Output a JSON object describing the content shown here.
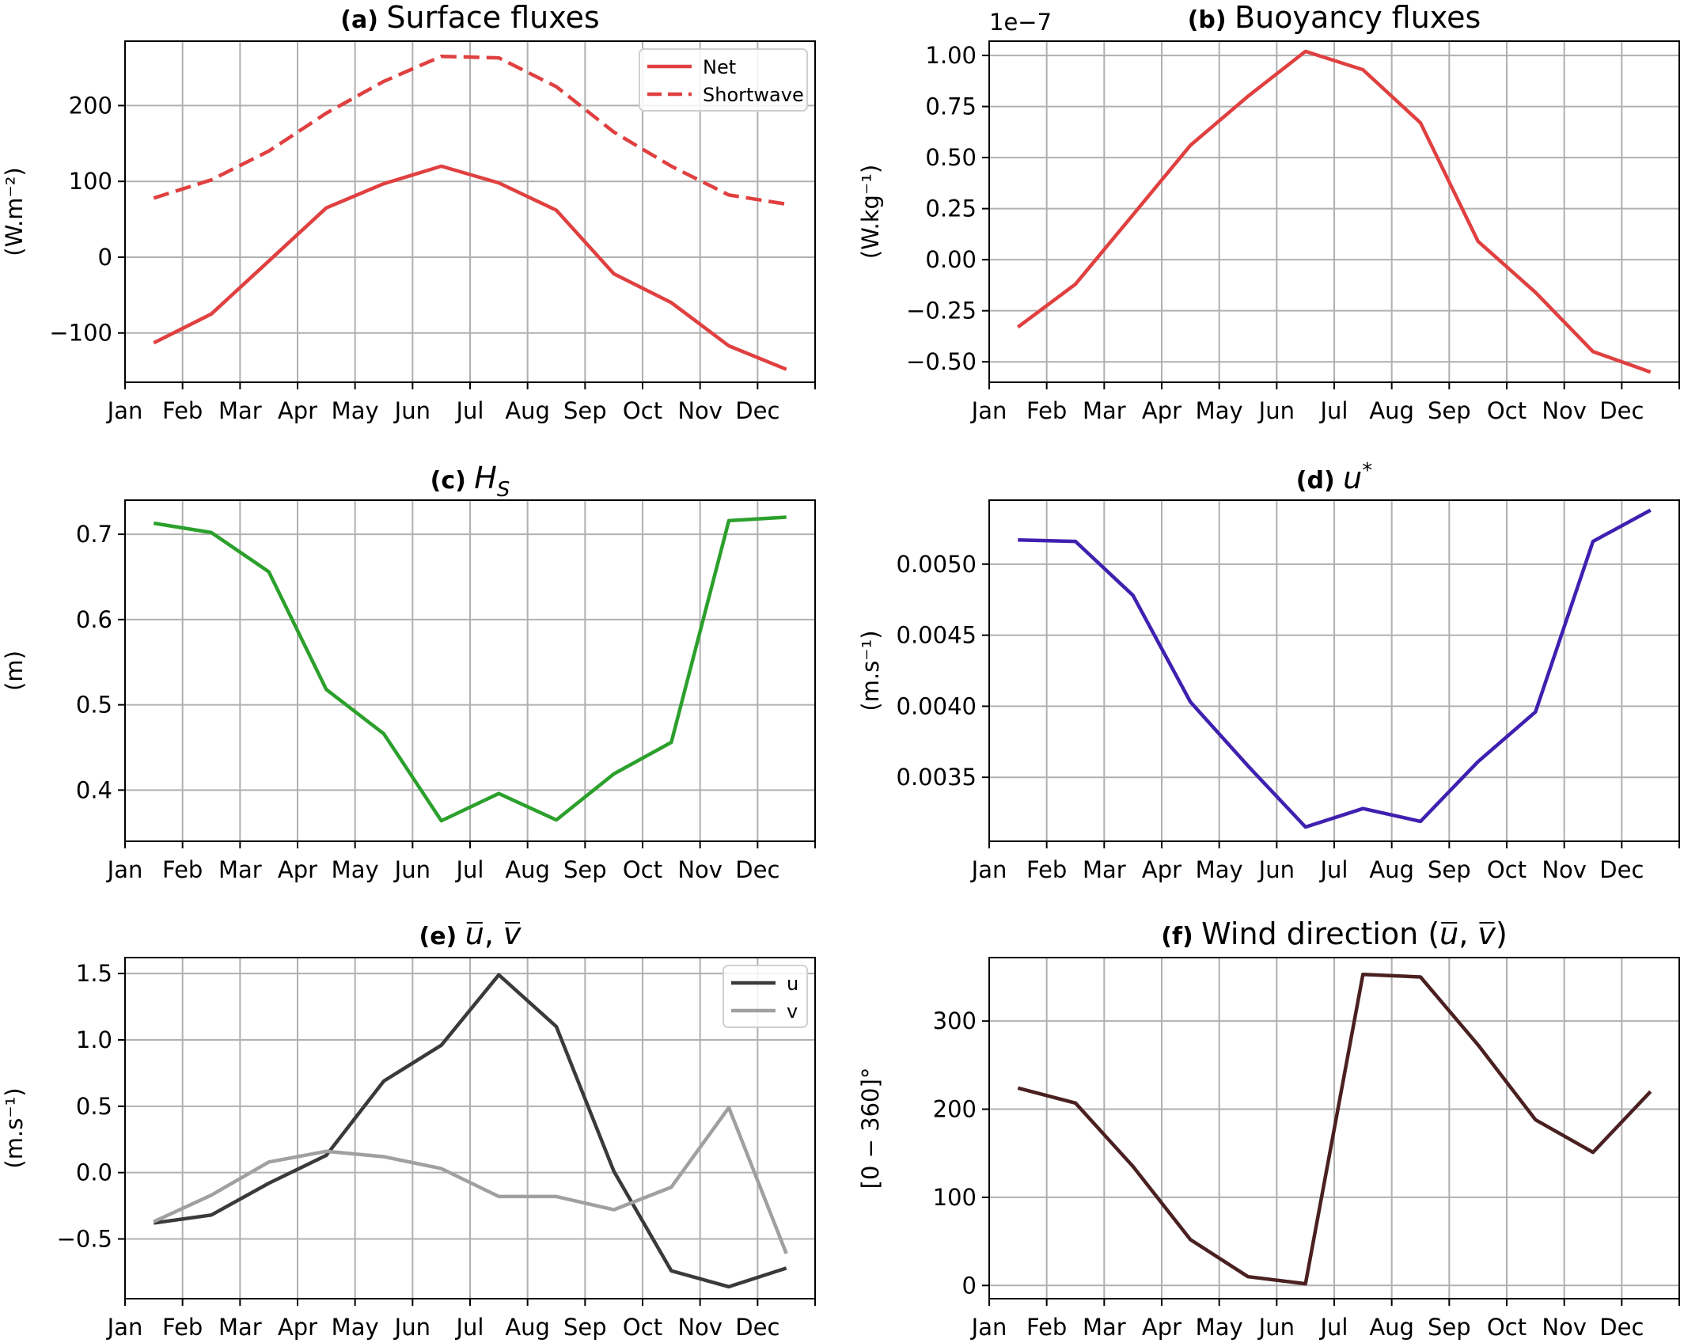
{
  "chart_data": [
    {
      "id": "a",
      "type": "line",
      "tag": "(a)",
      "title": "Surface fluxes",
      "ylabel": "(W.m⁻²)",
      "categories": [
        "Jan",
        "Feb",
        "Mar",
        "Apr",
        "May",
        "Jun",
        "Jul",
        "Aug",
        "Sep",
        "Oct",
        "Nov",
        "Dec"
      ],
      "xlim": [
        0,
        12
      ],
      "ylim": [
        -165,
        285
      ],
      "yticks": [
        -100,
        0,
        100,
        200
      ],
      "ytick_labels": [
        "−100",
        "0",
        "100",
        "200"
      ],
      "grid": true,
      "legend": "top-right",
      "series": [
        {
          "name": "Net",
          "style": "solid",
          "color": "#e04040",
          "x": [
            0.5,
            1.5,
            2.5,
            3.5,
            4.5,
            5.5,
            6.5,
            7.5,
            8.5,
            9.5,
            10.5,
            11.5
          ],
          "values": [
            -113,
            -75,
            -5,
            65,
            97,
            120,
            98,
            62,
            -22,
            -60,
            -117,
            -148
          ]
        },
        {
          "name": "Shortwave",
          "style": "dashed",
          "color": "#e04040",
          "x": [
            0.5,
            1.5,
            2.5,
            3.5,
            4.5,
            5.5,
            6.5,
            7.5,
            8.5,
            9.5,
            10.5,
            11.5
          ],
          "values": [
            78,
            102,
            140,
            190,
            232,
            265,
            263,
            225,
            165,
            120,
            82,
            70
          ]
        }
      ]
    },
    {
      "id": "b",
      "type": "line",
      "tag": "(b)",
      "title": "Buoyancy fluxes",
      "ylabel": "(W.kg⁻¹)",
      "offset_label": "1e−7",
      "categories": [
        "Jan",
        "Feb",
        "Mar",
        "Apr",
        "May",
        "Jun",
        "Jul",
        "Aug",
        "Sep",
        "Oct",
        "Nov",
        "Dec"
      ],
      "xlim": [
        0,
        12
      ],
      "ylim": [
        -0.6,
        1.07
      ],
      "yticks": [
        -0.5,
        -0.25,
        0.0,
        0.25,
        0.5,
        0.75,
        1.0
      ],
      "ytick_labels": [
        "−0.50",
        "−0.25",
        "0.00",
        "0.25",
        "0.50",
        "0.75",
        "1.00"
      ],
      "grid": true,
      "series": [
        {
          "color": "#e04040",
          "x": [
            0.5,
            1.5,
            2.5,
            3.5,
            4.5,
            5.5,
            6.5,
            7.5,
            8.5,
            9.5,
            10.5,
            11.5
          ],
          "values": [
            -0.33,
            -0.12,
            0.22,
            0.56,
            0.8,
            1.02,
            0.93,
            0.67,
            0.09,
            -0.16,
            -0.45,
            -0.55
          ]
        }
      ]
    },
    {
      "id": "c",
      "type": "line",
      "tag": "(c)",
      "title": "H",
      "title_sub": "S",
      "ylabel": "(m)",
      "categories": [
        "Jan",
        "Feb",
        "Mar",
        "Apr",
        "May",
        "Jun",
        "Jul",
        "Aug",
        "Sep",
        "Oct",
        "Nov",
        "Dec"
      ],
      "xlim": [
        0,
        12
      ],
      "ylim": [
        0.34,
        0.74
      ],
      "yticks": [
        0.4,
        0.5,
        0.6,
        0.7
      ],
      "ytick_labels": [
        "0.4",
        "0.5",
        "0.6",
        "0.7"
      ],
      "grid": true,
      "series": [
        {
          "color": "#2ca02c",
          "x": [
            0.5,
            1.5,
            2.5,
            3.5,
            4.5,
            5.5,
            6.5,
            7.5,
            8.5,
            9.5,
            10.5,
            11.5
          ],
          "values": [
            0.713,
            0.702,
            0.656,
            0.518,
            0.466,
            0.364,
            0.396,
            0.365,
            0.419,
            0.456,
            0.716,
            0.72
          ]
        }
      ]
    },
    {
      "id": "d",
      "type": "line",
      "tag": "(d)",
      "title": "u",
      "title_sup": "*",
      "ylabel": "(m.s⁻¹)",
      "categories": [
        "Jan",
        "Feb",
        "Mar",
        "Apr",
        "May",
        "Jun",
        "Jul",
        "Aug",
        "Sep",
        "Oct",
        "Nov",
        "Dec"
      ],
      "xlim": [
        0,
        12
      ],
      "ylim": [
        0.00305,
        0.00545
      ],
      "yticks": [
        0.0035,
        0.004,
        0.0045,
        0.005
      ],
      "ytick_labels": [
        "0.0035",
        "0.0040",
        "0.0045",
        "0.0050"
      ],
      "grid": true,
      "series": [
        {
          "color": "#3f20b0",
          "x": [
            0.5,
            1.5,
            2.5,
            3.5,
            4.5,
            5.5,
            6.5,
            7.5,
            8.5,
            9.5,
            10.5,
            11.5
          ],
          "values": [
            0.00517,
            0.00516,
            0.00478,
            0.00403,
            0.00358,
            0.00315,
            0.00328,
            0.00319,
            0.00361,
            0.00396,
            0.00516,
            0.00538
          ]
        }
      ]
    },
    {
      "id": "e",
      "type": "line",
      "tag": "(e)",
      "title": "u, v",
      "title_overbar": true,
      "ylabel": "(m.s⁻¹)",
      "categories": [
        "Jan",
        "Feb",
        "Mar",
        "Apr",
        "May",
        "Jun",
        "Jul",
        "Aug",
        "Sep",
        "Oct",
        "Nov",
        "Dec"
      ],
      "xlim": [
        0,
        12
      ],
      "ylim": [
        -0.95,
        1.62
      ],
      "yticks": [
        -0.5,
        0.0,
        0.5,
        1.0,
        1.5
      ],
      "ytick_labels": [
        "−0.5",
        "0.0",
        "0.5",
        "1.0",
        "1.5"
      ],
      "grid": true,
      "legend": "top-right",
      "series": [
        {
          "name": "u",
          "style": "solid",
          "color": "#3a3a3a",
          "x": [
            0.5,
            1.5,
            2.5,
            3.5,
            4.5,
            5.5,
            6.5,
            7.5,
            8.5,
            9.5,
            10.5,
            11.5
          ],
          "values": [
            -0.38,
            -0.32,
            -0.08,
            0.13,
            0.69,
            0.96,
            1.49,
            1.1,
            0.01,
            -0.74,
            -0.86,
            -0.72
          ]
        },
        {
          "name": "v",
          "style": "solid",
          "color": "#a0a0a0",
          "x": [
            0.5,
            1.5,
            2.5,
            3.5,
            4.5,
            5.5,
            6.5,
            7.5,
            8.5,
            9.5,
            10.5,
            11.5
          ],
          "values": [
            -0.37,
            -0.17,
            0.08,
            0.16,
            0.12,
            0.03,
            -0.18,
            -0.18,
            -0.28,
            -0.11,
            0.49,
            -0.61
          ]
        }
      ]
    },
    {
      "id": "f",
      "type": "line",
      "tag": "(f)",
      "title": "Wind direction (u, v)",
      "title_overbar": true,
      "ylabel": "[0 − 360]°",
      "categories": [
        "Jan",
        "Feb",
        "Mar",
        "Apr",
        "May",
        "Jun",
        "Jul",
        "Aug",
        "Sep",
        "Oct",
        "Nov",
        "Dec"
      ],
      "xlim": [
        0,
        12
      ],
      "ylim": [
        -15,
        372
      ],
      "yticks": [
        0,
        100,
        200,
        300
      ],
      "ytick_labels": [
        "0",
        "100",
        "200",
        "300"
      ],
      "grid": true,
      "series": [
        {
          "color": "#4a2020",
          "x": [
            0.5,
            1.5,
            2.5,
            3.5,
            4.5,
            5.5,
            6.5,
            7.5,
            8.5,
            9.5,
            10.5,
            11.5
          ],
          "values": [
            224,
            207,
            135,
            52,
            10,
            2,
            353,
            350,
            273,
            188,
            151,
            220
          ]
        }
      ]
    }
  ]
}
